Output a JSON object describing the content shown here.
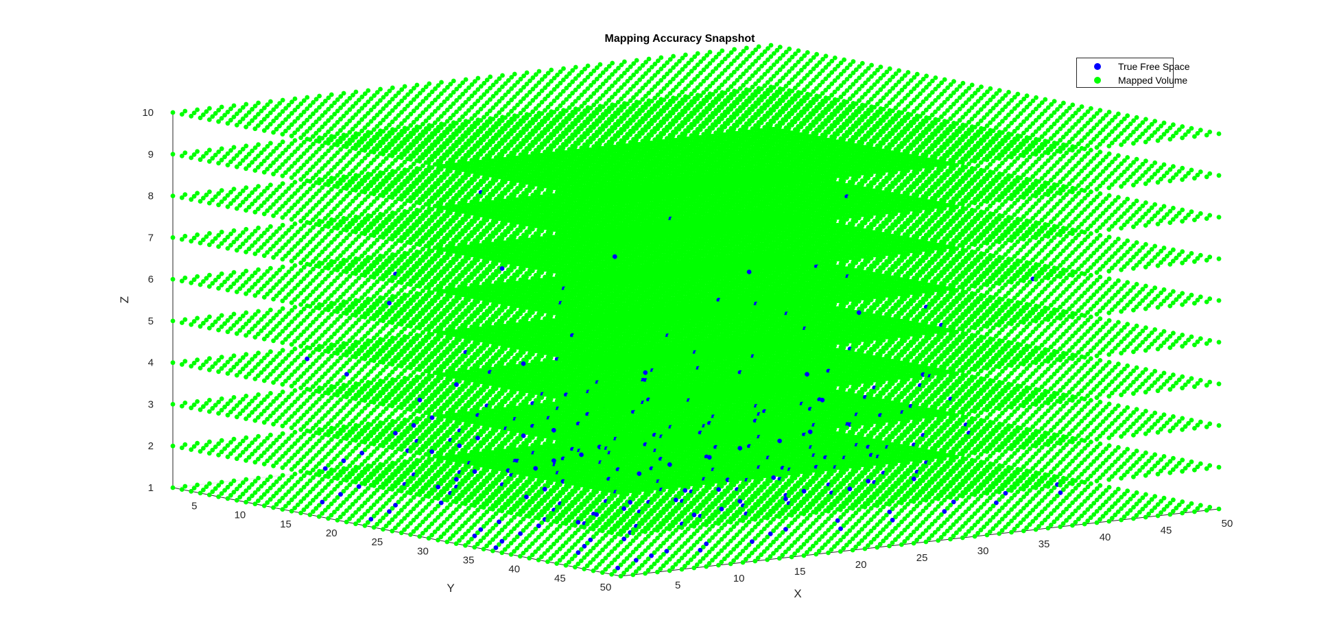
{
  "chart_data": {
    "type": "scatter3d",
    "title": "Mapping Accuracy Snapshot",
    "xlabel": "X",
    "ylabel": "Y",
    "zlabel": "Z",
    "xlim": [
      1,
      50
    ],
    "ylim": [
      1,
      50
    ],
    "zlim": [
      1,
      10
    ],
    "x_ticks": [
      5,
      10,
      15,
      20,
      25,
      30,
      35,
      40,
      45,
      50
    ],
    "y_ticks": [
      5,
      10,
      15,
      20,
      25,
      30,
      35,
      40,
      45,
      50
    ],
    "z_ticks": [
      1,
      2,
      3,
      4,
      5,
      6,
      7,
      8,
      9,
      10
    ],
    "legend_position": "top-right",
    "grid": false,
    "series": [
      {
        "name": "True Free Space",
        "color": "#0000ff",
        "marker": "filled-circle",
        "points": [
          [
            3,
            47,
            1
          ],
          [
            6,
            45,
            1
          ],
          [
            8,
            44,
            1
          ],
          [
            10,
            43,
            1
          ],
          [
            12,
            44,
            1
          ],
          [
            14,
            42,
            1
          ],
          [
            17,
            43,
            1
          ],
          [
            20,
            41,
            1
          ],
          [
            22,
            40,
            1
          ],
          [
            25,
            42,
            1
          ],
          [
            27,
            39,
            1
          ],
          [
            30,
            41,
            1
          ],
          [
            32,
            38,
            1
          ],
          [
            35,
            40,
            1
          ],
          [
            38,
            37,
            1
          ],
          [
            40,
            39,
            1
          ],
          [
            43,
            36,
            1
          ],
          [
            46,
            38,
            1
          ],
          [
            48,
            35,
            1
          ],
          [
            5,
            40,
            1
          ],
          [
            7,
            38,
            1
          ],
          [
            9,
            36,
            1
          ],
          [
            11,
            37,
            1
          ],
          [
            13,
            35,
            1
          ],
          [
            15,
            33,
            1
          ],
          [
            18,
            34,
            1
          ],
          [
            21,
            32,
            1
          ],
          [
            24,
            33,
            1
          ],
          [
            26,
            30,
            1
          ],
          [
            29,
            31,
            1
          ],
          [
            31,
            28,
            1
          ],
          [
            34,
            29,
            1
          ],
          [
            36,
            26,
            1
          ],
          [
            39,
            27,
            1
          ],
          [
            42,
            24,
            1
          ],
          [
            44,
            25,
            1
          ],
          [
            47,
            22,
            1
          ],
          [
            4,
            30,
            1
          ],
          [
            6,
            28,
            1
          ],
          [
            9,
            26,
            1
          ],
          [
            12,
            27,
            1
          ],
          [
            15,
            24,
            1
          ],
          [
            17,
            22,
            1
          ],
          [
            20,
            23,
            1
          ],
          [
            23,
            20,
            1
          ],
          [
            26,
            21,
            1
          ],
          [
            28,
            18,
            1
          ],
          [
            31,
            19,
            1
          ],
          [
            34,
            16,
            1
          ],
          [
            37,
            17,
            1
          ],
          [
            40,
            14,
            1
          ],
          [
            43,
            15,
            1
          ],
          [
            45,
            12,
            1
          ],
          [
            48,
            13,
            1
          ],
          [
            3,
            20,
            1
          ],
          [
            6,
            18,
            1
          ],
          [
            8,
            16,
            1
          ],
          [
            11,
            17,
            1
          ],
          [
            14,
            14,
            1
          ],
          [
            16,
            12,
            1
          ],
          [
            19,
            13,
            1
          ],
          [
            22,
            10,
            1
          ],
          [
            25,
            11,
            1
          ],
          [
            27,
            8,
            1
          ],
          [
            30,
            9,
            1
          ],
          [
            33,
            6,
            1
          ],
          [
            36,
            7,
            1
          ],
          [
            38,
            5,
            1
          ],
          [
            41,
            6,
            1
          ],
          [
            44,
            4,
            1
          ],
          [
            2,
            35,
            1
          ],
          [
            4,
            33,
            1
          ],
          [
            7,
            31,
            1
          ],
          [
            10,
            29,
            1
          ],
          [
            13,
            30,
            1
          ],
          [
            16,
            27,
            1
          ],
          [
            19,
            28,
            1
          ],
          [
            22,
            25,
            1
          ],
          [
            24,
            26,
            1
          ],
          [
            27,
            23,
            1
          ],
          [
            30,
            24,
            1
          ],
          [
            33,
            21,
            1
          ],
          [
            35,
            22,
            1
          ],
          [
            38,
            19,
            1
          ],
          [
            41,
            20,
            1
          ],
          [
            44,
            17,
            1
          ],
          [
            46,
            18,
            1
          ],
          [
            49,
            15,
            1
          ],
          [
            5,
            12,
            1
          ],
          [
            8,
            10,
            1
          ],
          [
            11,
            8,
            1
          ],
          [
            14,
            9,
            1
          ],
          [
            17,
            6,
            1
          ],
          [
            20,
            7,
            1
          ],
          [
            23,
            4,
            1
          ],
          [
            26,
            5,
            1
          ],
          [
            29,
            3,
            1
          ],
          [
            32,
            4,
            1
          ],
          [
            35,
            2,
            1
          ],
          [
            38,
            3,
            1
          ],
          [
            2,
            44,
            2
          ],
          [
            5,
            42,
            2
          ],
          [
            8,
            41,
            2
          ],
          [
            10,
            39,
            2
          ],
          [
            13,
            40,
            2
          ],
          [
            16,
            37,
            2
          ],
          [
            18,
            38,
            2
          ],
          [
            21,
            35,
            2
          ],
          [
            24,
            36,
            2
          ],
          [
            27,
            33,
            2
          ],
          [
            29,
            34,
            2
          ],
          [
            32,
            31,
            2
          ],
          [
            35,
            32,
            2
          ],
          [
            37,
            29,
            2
          ],
          [
            40,
            30,
            2
          ],
          [
            43,
            27,
            2
          ],
          [
            46,
            28,
            2
          ],
          [
            48,
            25,
            2
          ],
          [
            4,
            26,
            2
          ],
          [
            7,
            24,
            2
          ],
          [
            10,
            22,
            2
          ],
          [
            12,
            23,
            2
          ],
          [
            15,
            20,
            2
          ],
          [
            18,
            21,
            2
          ],
          [
            21,
            18,
            2
          ],
          [
            23,
            19,
            2
          ],
          [
            26,
            16,
            2
          ],
          [
            29,
            17,
            2
          ],
          [
            32,
            14,
            2
          ],
          [
            34,
            15,
            2
          ],
          [
            37,
            12,
            2
          ],
          [
            40,
            13,
            2
          ],
          [
            42,
            10,
            2
          ],
          [
            45,
            11,
            2
          ],
          [
            3,
            15,
            2
          ],
          [
            6,
            13,
            2
          ],
          [
            9,
            11,
            2
          ],
          [
            12,
            12,
            2
          ],
          [
            15,
            9,
            2
          ],
          [
            17,
            10,
            2
          ],
          [
            20,
            7,
            2
          ],
          [
            23,
            8,
            2
          ],
          [
            26,
            5,
            2
          ],
          [
            28,
            6,
            2
          ],
          [
            31,
            3,
            2
          ],
          [
            34,
            4,
            2
          ],
          [
            6,
            33,
            2
          ],
          [
            9,
            31,
            2
          ],
          [
            12,
            29,
            2
          ],
          [
            15,
            30,
            2
          ],
          [
            18,
            27,
            2
          ],
          [
            20,
            28,
            2
          ],
          [
            23,
            25,
            2
          ],
          [
            26,
            26,
            2
          ],
          [
            29,
            23,
            2
          ],
          [
            31,
            24,
            2
          ],
          [
            34,
            21,
            2
          ],
          [
            37,
            22,
            2
          ],
          [
            40,
            19,
            2
          ],
          [
            42,
            20,
            2
          ],
          [
            45,
            17,
            2
          ],
          [
            48,
            18,
            2
          ],
          [
            10,
            46,
            2
          ],
          [
            13,
            45,
            2
          ],
          [
            16,
            43,
            2
          ],
          [
            19,
            44,
            2
          ],
          [
            22,
            42,
            2
          ],
          [
            25,
            43,
            2
          ],
          [
            28,
            41,
            2
          ],
          [
            31,
            42,
            2
          ],
          [
            3,
            38,
            3
          ],
          [
            6,
            36,
            3
          ],
          [
            9,
            35,
            3
          ],
          [
            12,
            33,
            3
          ],
          [
            15,
            34,
            3
          ],
          [
            18,
            31,
            3
          ],
          [
            21,
            32,
            3
          ],
          [
            24,
            29,
            3
          ],
          [
            27,
            30,
            3
          ],
          [
            30,
            27,
            3
          ],
          [
            33,
            28,
            3
          ],
          [
            36,
            25,
            3
          ],
          [
            39,
            26,
            3
          ],
          [
            42,
            23,
            3
          ],
          [
            45,
            24,
            3
          ],
          [
            48,
            21,
            3
          ],
          [
            5,
            20,
            3
          ],
          [
            8,
            18,
            3
          ],
          [
            11,
            16,
            3
          ],
          [
            14,
            17,
            3
          ],
          [
            17,
            14,
            3
          ],
          [
            20,
            15,
            3
          ],
          [
            23,
            12,
            3
          ],
          [
            26,
            13,
            3
          ],
          [
            29,
            10,
            3
          ],
          [
            32,
            11,
            3
          ],
          [
            35,
            8,
            3
          ],
          [
            38,
            9,
            3
          ],
          [
            41,
            6,
            3
          ],
          [
            44,
            7,
            3
          ],
          [
            2,
            28,
            3
          ],
          [
            5,
            27,
            3
          ],
          [
            8,
            25,
            3
          ],
          [
            11,
            26,
            3
          ],
          [
            14,
            23,
            3
          ],
          [
            17,
            24,
            3
          ],
          [
            20,
            21,
            3
          ],
          [
            23,
            22,
            3
          ],
          [
            26,
            19,
            3
          ],
          [
            29,
            20,
            3
          ],
          [
            7,
            44,
            3
          ],
          [
            11,
            42,
            3
          ],
          [
            15,
            41,
            3
          ],
          [
            19,
            39,
            3
          ],
          [
            23,
            38,
            3
          ],
          [
            27,
            36,
            3
          ],
          [
            31,
            35,
            3
          ],
          [
            35,
            33,
            3
          ],
          [
            39,
            31,
            3
          ],
          [
            43,
            30,
            3
          ],
          [
            4,
            24,
            4
          ],
          [
            10,
            20,
            4
          ],
          [
            16,
            33,
            4
          ],
          [
            22,
            15,
            4
          ],
          [
            28,
            27,
            4
          ],
          [
            34,
            11,
            4
          ],
          [
            40,
            23,
            4
          ],
          [
            46,
            8,
            4
          ],
          [
            7,
            12,
            4
          ],
          [
            13,
            28,
            4
          ],
          [
            19,
            9,
            4
          ],
          [
            25,
            40,
            4
          ],
          [
            31,
            18,
            4
          ],
          [
            37,
            35,
            4
          ],
          [
            43,
            14,
            4
          ],
          [
            3,
            40,
            4
          ],
          [
            9,
            5,
            4
          ],
          [
            15,
            17,
            4
          ],
          [
            21,
            26,
            4
          ],
          [
            33,
            30,
            4
          ],
          [
            12,
            38,
            5
          ],
          [
            18,
            22,
            5
          ],
          [
            26,
            10,
            5
          ],
          [
            36,
            18,
            5
          ],
          [
            44,
            26,
            5
          ],
          [
            8,
            30,
            5
          ],
          [
            30,
            5,
            5
          ],
          [
            40,
            33,
            5
          ],
          [
            20,
            45,
            5
          ],
          [
            48,
            12,
            5
          ],
          [
            14,
            8,
            6
          ],
          [
            24,
            30,
            6
          ],
          [
            38,
            22,
            6
          ],
          [
            6,
            18,
            6
          ],
          [
            46,
            35,
            6
          ],
          [
            28,
            40,
            6
          ],
          [
            10,
            25,
            7
          ],
          [
            32,
            14,
            7
          ],
          [
            42,
            6,
            7
          ],
          [
            22,
            36,
            7
          ],
          [
            18,
            12,
            8
          ],
          [
            36,
            28,
            8
          ],
          [
            8,
            40,
            8
          ]
        ]
      },
      {
        "name": "Mapped Volume",
        "color": "#00ff00",
        "marker": "filled-circle",
        "x_range": [
          1,
          50
        ],
        "y_range": [
          1,
          50
        ],
        "z_levels": [
          1,
          2,
          3,
          4,
          5,
          6,
          7,
          8,
          9,
          10
        ],
        "fill": "full-grid"
      }
    ]
  }
}
